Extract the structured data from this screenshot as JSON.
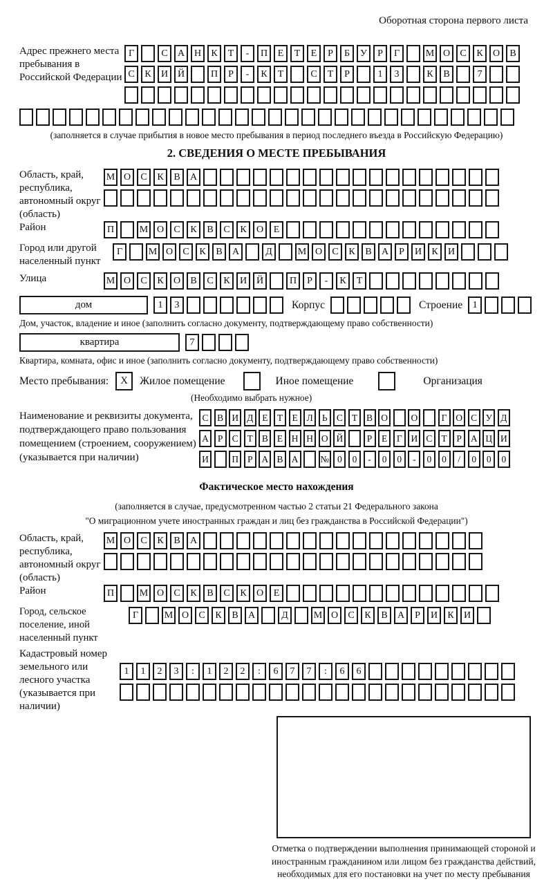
{
  "page_title": "Оборотная сторона первого листа",
  "prev_address": {
    "label": "Адрес прежнего места пребывания в Российской Федерации",
    "r1": "Г САНКТ-ПЕТЕРБУРГ МОСКОВ",
    "r2": "СКИЙ ПР-КТ СТР 13 КВ 7  ",
    "r3": "                        ",
    "r4": "                              ",
    "note": "(заполняется в случае прибытия в новое место пребывания в период последнего въезда в Российскую Федерацию)"
  },
  "s2": {
    "heading": "2. СВЕДЕНИЯ О МЕСТЕ ПРЕБЫВАНИЯ",
    "region": {
      "label": "Область, край, республика, автономный округ (область)",
      "r1": "МОСКВА                  ",
      "r2": "                        "
    },
    "district": {
      "label": "Район",
      "r1": "П МОСКВСКОЕ             "
    },
    "city": {
      "label": "Город или другой населенный пункт",
      "r1": "Г МОСКВА Д МОСКВАРИКИ   "
    },
    "street": {
      "label": "Улица",
      "r1": "МОСКОВСКИЙ ПР-КТ        "
    },
    "house": {
      "box_label": "дом",
      "cells": "13      ",
      "korpus_label": "Корпус",
      "korpus_cells": "     ",
      "stroenie_label": "Строение",
      "stroenie_cells": "1   "
    },
    "house_note": "Дом, участок, владение и иное (заполнить согласно документу, подтверждающему право собственности)",
    "apartment": {
      "box_label": "квартира",
      "cells": "7   "
    },
    "apartment_note": "Квартира, комната, офис и иное (заполнить согласно документу, подтверждающему право собственности)",
    "stay_type": {
      "label": "Место пребывания:",
      "options": [
        {
          "label": "Жилое помещение",
          "checked": "X"
        },
        {
          "label": "Иное помещение",
          "checked": ""
        },
        {
          "label": "Организация",
          "checked": ""
        }
      ],
      "note": "(Необходимо выбрать нужное)"
    },
    "document": {
      "label": "Наименование и реквизиты документа, подтверждающего право пользования помещением (строением, сооружением) (указывается при наличии)",
      "r1": "СВИДЕТЕЛЬСТВО О ГОСУД",
      "r2": "АРСТВЕННОЙ РЕГИСТРАЦИ",
      "r3": "И ПРАВА №00-00-00/000"
    }
  },
  "actual": {
    "heading": "Фактическое место нахождения",
    "note1": "(заполняется в случае, предусмотренном частью 2 статьи 21 Федерального закона",
    "note2": "\"О миграционном учете иностранных граждан и лиц без гражданства в Российской Федерации\")",
    "region": {
      "label": "Область, край, республика, автономный округ (область)",
      "r1": "МОСКВА                 ",
      "r2": "                       "
    },
    "district": {
      "label": "Район",
      "r1": "П МОСКВСКОЕ             "
    },
    "city": {
      "label": "Город, сельское поселение, иной населенный пункт",
      "r1": "Г МОСКВА Д МОСКВАРИКИ "
    },
    "cadastre": {
      "label": "Кадастровый номер земельного или лесного участка (указывается при наличии)",
      "r1": "1123:122:677:66         ",
      "r2": "                        "
    }
  },
  "stamp": {
    "caption": "Отметка о подтверждении выполнения принимающей стороной и иностранным гражданином или лицом без гражданства действий, необходимых для его постановки на учет по месту пребывания"
  }
}
